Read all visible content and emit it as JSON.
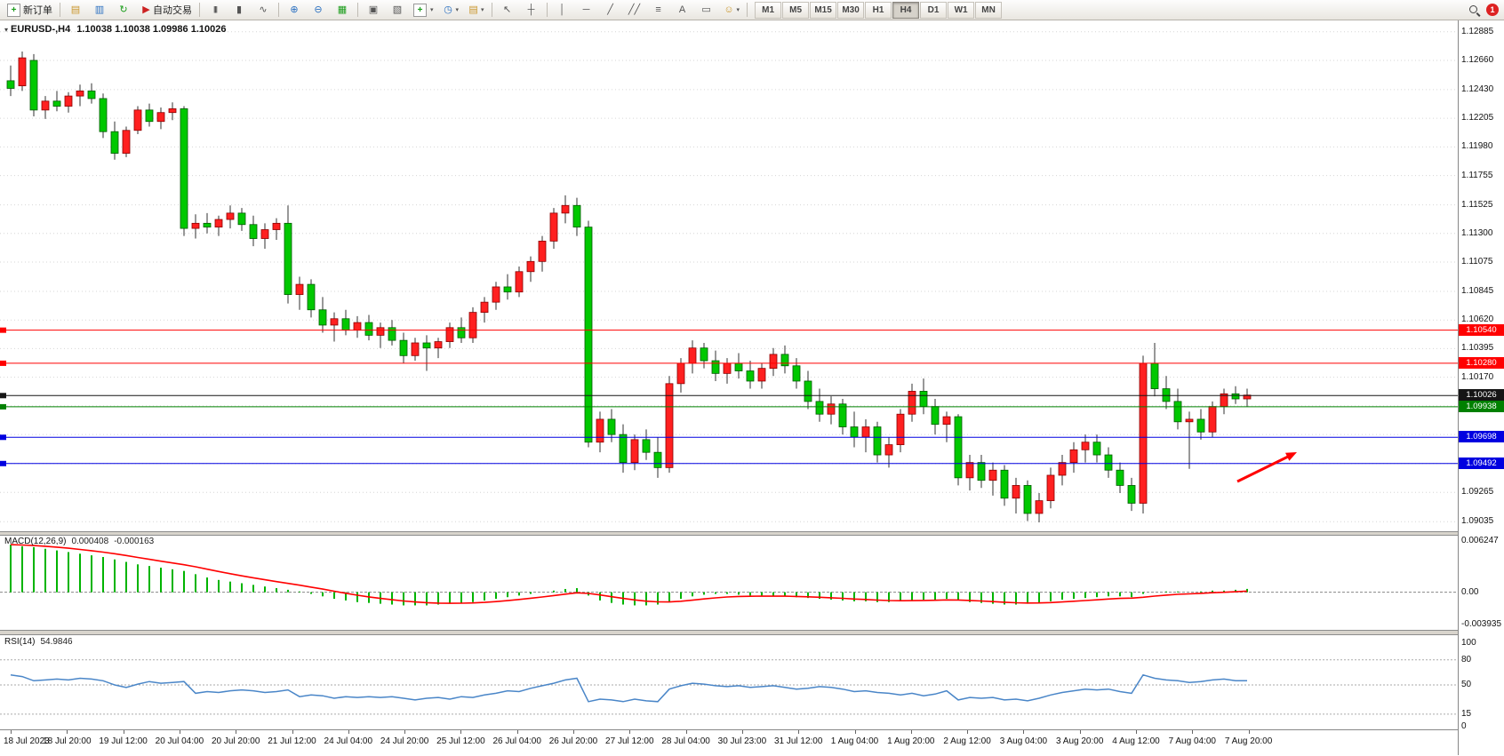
{
  "toolbar": {
    "new_order_label": "新订单",
    "auto_trading_label": "自动交易",
    "timeframes": [
      "M1",
      "M5",
      "M15",
      "M30",
      "H1",
      "H4",
      "D1",
      "W1",
      "MN"
    ],
    "active_timeframe": "H4",
    "notification_count": "1",
    "icons": {
      "new_order_plus": "+",
      "market_watch": "▤",
      "data_window": "▥",
      "navigator": "↻",
      "auto_trading_play": "▶",
      "bar_chart": "|||",
      "candle_chart": "▮",
      "line_chart": "∿",
      "zoom_in": "⊕",
      "zoom_out": "⊖",
      "tile_windows": "▦",
      "arrange_windows": "▣",
      "chart_shift": "▧",
      "indicators_plus": "+",
      "periods_clock": "◷",
      "templates": "▤",
      "cursor": "↖",
      "crosshair": "┼",
      "vertical_line": "│",
      "horizontal_line": "─",
      "trendline": "╱",
      "channel": "╱╱",
      "fibonacci": "≡",
      "text": "A",
      "text_label": "▭",
      "shapes": "☺",
      "caret": "▾"
    }
  },
  "chart_data": [
    {
      "type": "candlestick",
      "symbol_period": "EURUSD-,H4",
      "ohlc_text": "1.10038 1.10038 1.09986 1.10026",
      "open": "1.10038",
      "high": "1.10038",
      "low": "1.09986",
      "close": "1.10026",
      "colors": {
        "bull": "#ff2020",
        "bear": "#00c800",
        "wick": "#303030"
      },
      "ylim": [
        1.0896,
        1.1296
      ],
      "y_axis_ticks": [
        "1.12885",
        "1.12660",
        "1.12430",
        "1.12205",
        "1.11980",
        "1.11755",
        "1.11525",
        "1.11300",
        "1.11075",
        "1.10845",
        "1.10620",
        "1.10395",
        "1.10170",
        "1.09265",
        "1.09035"
      ],
      "grid_prices": [
        1.12885,
        1.1266,
        1.1243,
        1.12205,
        1.1198,
        1.11755,
        1.11525,
        1.113,
        1.11075,
        1.10845,
        1.1062,
        1.10395,
        1.1017,
        1.09945,
        1.0972,
        1.09492,
        1.09265,
        1.09035
      ],
      "x_labels": [
        "18 Jul 2023",
        "18 Jul 20:00",
        "19 Jul 12:00",
        "20 Jul 04:00",
        "20 Jul 20:00",
        "21 Jul 12:00",
        "24 Jul 04:00",
        "24 Jul 20:00",
        "25 Jul 12:00",
        "26 Jul 04:00",
        "26 Jul 20:00",
        "27 Jul 12:00",
        "28 Jul 04:00",
        "30 Jul 23:00",
        "31 Jul 12:00",
        "1 Aug 04:00",
        "1 Aug 20:00",
        "2 Aug 12:00",
        "3 Aug 04:00",
        "3 Aug 20:00",
        "4 Aug 12:00",
        "7 Aug 04:00",
        "7 Aug 20:00"
      ],
      "hlines": [
        {
          "price": "1.10540",
          "color": "#FF0000"
        },
        {
          "price": "1.10280",
          "color": "#FF0000"
        },
        {
          "price": "1.10026",
          "color": "#151515",
          "style": "current"
        },
        {
          "price": "1.09938",
          "color": "#008000"
        },
        {
          "price": "1.09698",
          "color": "#0000E0"
        },
        {
          "price": "1.09492",
          "color": "#0000E0"
        }
      ],
      "annotation": {
        "type": "arrow",
        "color": "#FF0000",
        "description": "red arrow pointing up-right toward the 1.0970 level"
      },
      "candles": [
        [
          1.125,
          1.1262,
          1.1238,
          1.1244
        ],
        [
          1.1246,
          1.1273,
          1.1242,
          1.1268
        ],
        [
          1.1266,
          1.1271,
          1.1222,
          1.1227
        ],
        [
          1.1227,
          1.1238,
          1.122,
          1.1234
        ],
        [
          1.1234,
          1.1242,
          1.1226,
          1.123
        ],
        [
          1.123,
          1.1241,
          1.1225,
          1.1238
        ],
        [
          1.1238,
          1.1247,
          1.123,
          1.1242
        ],
        [
          1.1242,
          1.1248,
          1.1232,
          1.1236
        ],
        [
          1.1236,
          1.124,
          1.1205,
          1.121
        ],
        [
          1.121,
          1.1218,
          1.1188,
          1.1193
        ],
        [
          1.1193,
          1.1214,
          1.119,
          1.1211
        ],
        [
          1.1211,
          1.123,
          1.1208,
          1.1227
        ],
        [
          1.1227,
          1.1232,
          1.1214,
          1.1218
        ],
        [
          1.1218,
          1.1229,
          1.1212,
          1.1225
        ],
        [
          1.1225,
          1.1233,
          1.1219,
          1.1228
        ],
        [
          1.1228,
          1.123,
          1.1128,
          1.1134
        ],
        [
          1.1134,
          1.1145,
          1.1126,
          1.1138
        ],
        [
          1.1138,
          1.1146,
          1.113,
          1.1135
        ],
        [
          1.1135,
          1.1144,
          1.1128,
          1.1141
        ],
        [
          1.1141,
          1.1152,
          1.1134,
          1.1146
        ],
        [
          1.1146,
          1.115,
          1.1132,
          1.1137
        ],
        [
          1.1137,
          1.1144,
          1.112,
          1.1126
        ],
        [
          1.1126,
          1.1138,
          1.1118,
          1.1133
        ],
        [
          1.1133,
          1.1142,
          1.1125,
          1.1138
        ],
        [
          1.1138,
          1.1152,
          1.1075,
          1.1082
        ],
        [
          1.1082,
          1.1096,
          1.107,
          1.109
        ],
        [
          1.109,
          1.1094,
          1.1064,
          1.107
        ],
        [
          1.107,
          1.108,
          1.1052,
          1.1058
        ],
        [
          1.1058,
          1.1068,
          1.1045,
          1.1063
        ],
        [
          1.1063,
          1.107,
          1.105,
          1.1054
        ],
        [
          1.1054,
          1.1065,
          1.1048,
          1.106
        ],
        [
          1.106,
          1.1066,
          1.1046,
          1.105
        ],
        [
          1.105,
          1.106,
          1.104,
          1.1056
        ],
        [
          1.1056,
          1.1062,
          1.1042,
          1.1046
        ],
        [
          1.1046,
          1.1052,
          1.1028,
          1.1034
        ],
        [
          1.1034,
          1.1048,
          1.103,
          1.1044
        ],
        [
          1.1044,
          1.105,
          1.1022,
          1.104
        ],
        [
          1.104,
          1.1048,
          1.1032,
          1.1045
        ],
        [
          1.1045,
          1.106,
          1.104,
          1.1056
        ],
        [
          1.1056,
          1.1064,
          1.1044,
          1.1048
        ],
        [
          1.1048,
          1.1072,
          1.1044,
          1.1068
        ],
        [
          1.1068,
          1.108,
          1.106,
          1.1076
        ],
        [
          1.1076,
          1.1092,
          1.107,
          1.1088
        ],
        [
          1.1088,
          1.1098,
          1.1078,
          1.1084
        ],
        [
          1.1084,
          1.1104,
          1.108,
          1.11
        ],
        [
          1.11,
          1.1112,
          1.1092,
          1.1108
        ],
        [
          1.1108,
          1.1128,
          1.11,
          1.1124
        ],
        [
          1.1124,
          1.115,
          1.1118,
          1.1146
        ],
        [
          1.1146,
          1.116,
          1.1138,
          1.1152
        ],
        [
          1.1152,
          1.1158,
          1.1128,
          1.1135
        ],
        [
          1.1135,
          1.114,
          1.0962,
          1.0966
        ],
        [
          1.0966,
          1.099,
          1.0958,
          1.0984
        ],
        [
          1.0984,
          1.0992,
          1.0966,
          1.0972
        ],
        [
          1.0972,
          1.098,
          1.0942,
          1.095
        ],
        [
          1.095,
          1.0972,
          1.0944,
          1.0968
        ],
        [
          1.0968,
          1.0976,
          1.0952,
          1.0958
        ],
        [
          1.0958,
          1.097,
          1.0938,
          1.0946
        ],
        [
          1.0946,
          1.1018,
          1.0942,
          1.1012
        ],
        [
          1.1012,
          1.1032,
          1.1005,
          1.1028
        ],
        [
          1.1028,
          1.1046,
          1.102,
          1.104
        ],
        [
          1.104,
          1.1044,
          1.1024,
          1.103
        ],
        [
          1.103,
          1.1038,
          1.1014,
          1.102
        ],
        [
          1.102,
          1.1032,
          1.1012,
          1.1028
        ],
        [
          1.1028,
          1.1036,
          1.1016,
          1.1022
        ],
        [
          1.1022,
          1.103,
          1.1008,
          1.1014
        ],
        [
          1.1014,
          1.1028,
          1.1008,
          1.1024
        ],
        [
          1.1024,
          1.104,
          1.1018,
          1.1035
        ],
        [
          1.1035,
          1.1042,
          1.102,
          1.1026
        ],
        [
          1.1026,
          1.1032,
          1.1008,
          1.1014
        ],
        [
          1.1014,
          1.1022,
          1.0992,
          1.0998
        ],
        [
          1.0998,
          1.1008,
          1.0982,
          1.0988
        ],
        [
          1.0988,
          1.1002,
          1.098,
          1.0996
        ],
        [
          1.0996,
          1.1,
          1.0972,
          1.0978
        ],
        [
          1.0978,
          1.099,
          1.0962,
          1.097
        ],
        [
          1.097,
          1.0984,
          1.0958,
          1.0978
        ],
        [
          1.0978,
          1.0982,
          1.095,
          1.0956
        ],
        [
          1.0956,
          1.097,
          1.0946,
          1.0964
        ],
        [
          1.0964,
          1.0992,
          1.0958,
          1.0988
        ],
        [
          1.0988,
          1.1012,
          1.0982,
          1.1006
        ],
        [
          1.1006,
          1.1016,
          1.0988,
          1.0994
        ],
        [
          1.0994,
          1.1,
          1.0972,
          1.098
        ],
        [
          1.098,
          1.099,
          1.0966,
          1.0986
        ],
        [
          1.0986,
          1.0988,
          1.0932,
          1.0938
        ],
        [
          1.0938,
          1.0956,
          1.0928,
          1.095
        ],
        [
          1.095,
          1.0956,
          1.093,
          1.0936
        ],
        [
          1.0936,
          1.095,
          1.0924,
          1.0944
        ],
        [
          1.0944,
          1.0948,
          1.0916,
          1.0922
        ],
        [
          1.0922,
          1.0938,
          1.091,
          1.0932
        ],
        [
          1.0932,
          1.0936,
          1.0904,
          1.091
        ],
        [
          1.091,
          1.0926,
          1.0903,
          1.092
        ],
        [
          1.092,
          1.0946,
          1.0914,
          1.094
        ],
        [
          1.094,
          1.0956,
          1.0932,
          1.095
        ],
        [
          1.095,
          1.0966,
          1.0942,
          1.096
        ],
        [
          1.096,
          1.0972,
          1.095,
          1.0966
        ],
        [
          1.0966,
          1.0972,
          1.095,
          1.0956
        ],
        [
          1.0956,
          1.0962,
          1.0938,
          1.0944
        ],
        [
          1.0944,
          1.095,
          1.0926,
          1.0932
        ],
        [
          1.0932,
          1.0938,
          1.0912,
          1.0918
        ],
        [
          1.0918,
          1.1034,
          1.091,
          1.1028
        ],
        [
          1.1028,
          1.1044,
          1.1002,
          1.1008
        ],
        [
          1.1008,
          1.1018,
          1.0992,
          1.0998
        ],
        [
          1.0998,
          1.1008,
          1.0976,
          1.0982
        ],
        [
          1.0982,
          1.099,
          1.0945,
          1.0984
        ],
        [
          1.0984,
          1.0992,
          1.0968,
          1.0974
        ],
        [
          1.0974,
          1.0998,
          1.097,
          1.0994
        ],
        [
          1.0994,
          1.1008,
          1.0988,
          1.1004
        ],
        [
          1.1004,
          1.101,
          1.0996,
          1.1
        ],
        [
          1.1,
          1.1008,
          1.0994,
          1.1003
        ]
      ]
    },
    {
      "type": "macd-histogram",
      "label": "MACD(12,26,9)",
      "value_main": "0.000408",
      "value_signal": "-0.000163",
      "y_ticks": [
        "0.006247",
        "0.00",
        "-0.003935"
      ],
      "ylim": [
        -0.003935,
        0.006247
      ],
      "colors": {
        "histogram": "#00b400",
        "signal": "#FF0000"
      },
      "histogram": [
        0.0058,
        0.0056,
        0.0055,
        0.0053,
        0.0051,
        0.0049,
        0.0047,
        0.0045,
        0.0043,
        0.004,
        0.0037,
        0.0034,
        0.0032,
        0.003,
        0.0028,
        0.0026,
        0.0022,
        0.0018,
        0.0015,
        0.0013,
        0.0011,
        0.0009,
        0.0007,
        0.0005,
        0.0003,
        0.0001,
        -0.0002,
        -0.0005,
        -0.0008,
        -0.001,
        -0.0012,
        -0.0013,
        -0.0014,
        -0.0015,
        -0.0016,
        -0.0016,
        -0.0016,
        -0.0015,
        -0.0014,
        -0.0013,
        -0.0012,
        -0.001,
        -0.0008,
        -0.0006,
        -0.0004,
        -0.0002,
        0.0,
        0.0002,
        0.0004,
        0.0005,
        -0.0004,
        -0.001,
        -0.0013,
        -0.0015,
        -0.0016,
        -0.0016,
        -0.0015,
        -0.0012,
        -0.0008,
        -0.0005,
        -0.0003,
        -0.0002,
        -0.0002,
        -0.0003,
        -0.0004,
        -0.0004,
        -0.0005,
        -0.0005,
        -0.0006,
        -0.0007,
        -0.0008,
        -0.0009,
        -0.001,
        -0.0011,
        -0.0011,
        -0.0012,
        -0.0012,
        -0.0011,
        -0.001,
        -0.0009,
        -0.0009,
        -0.0008,
        -0.001,
        -0.0012,
        -0.0013,
        -0.0014,
        -0.0015,
        -0.0015,
        -0.0014,
        -0.0013,
        -0.0011,
        -0.0009,
        -0.0008,
        -0.0007,
        -0.0006,
        -0.0005,
        -0.0005,
        -0.0006,
        -0.0002,
        0.0,
        0.0001,
        0.0001,
        0.0,
        0.0001,
        0.0002,
        0.0002,
        0.0003,
        0.000408
      ]
    },
    {
      "type": "line",
      "label": "RSI(14)",
      "value": "54.9846",
      "y_ticks": [
        "100",
        "80",
        "50",
        "15",
        "0"
      ],
      "levels": [
        80,
        50,
        15
      ],
      "ylim": [
        0,
        100
      ],
      "color": "#4a86c8",
      "values": [
        62,
        60,
        55,
        56,
        57,
        56,
        58,
        57,
        55,
        50,
        47,
        51,
        54,
        52,
        53,
        54,
        40,
        42,
        41,
        43,
        44,
        43,
        41,
        42,
        44,
        36,
        38,
        37,
        34,
        36,
        35,
        36,
        35,
        36,
        34,
        32,
        34,
        35,
        33,
        36,
        35,
        38,
        40,
        43,
        42,
        46,
        49,
        52,
        56,
        58,
        30,
        33,
        32,
        30,
        33,
        31,
        30,
        45,
        49,
        52,
        51,
        49,
        48,
        49,
        47,
        48,
        49,
        47,
        45,
        46,
        48,
        47,
        45,
        42,
        43,
        41,
        40,
        38,
        40,
        37,
        39,
        43,
        32,
        35,
        34,
        35,
        32,
        33,
        31,
        34,
        38,
        41,
        43,
        45,
        44,
        45,
        42,
        40,
        62,
        58,
        56,
        55,
        53,
        54,
        56,
        57,
        55,
        54.98
      ]
    }
  ]
}
